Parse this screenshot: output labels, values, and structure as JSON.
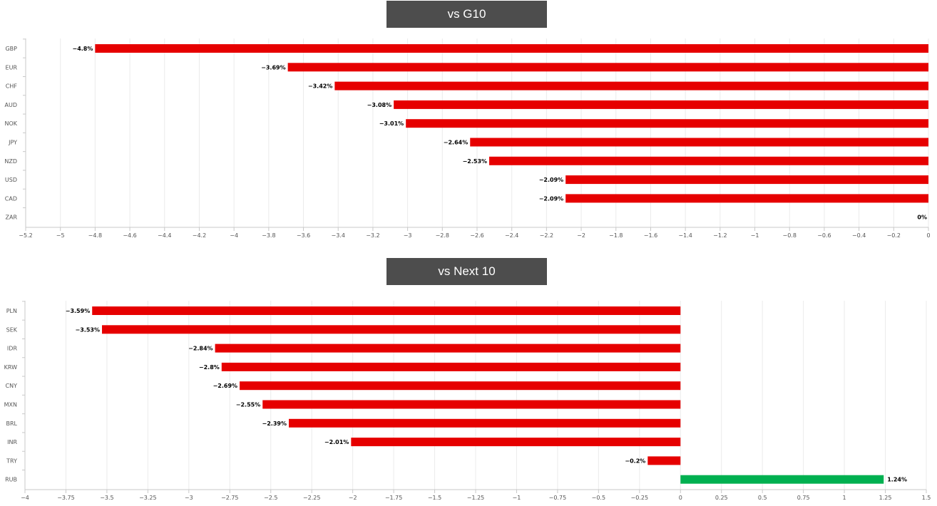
{
  "chart_data": [
    {
      "type": "bar",
      "orientation": "horizontal",
      "title": "vs G10",
      "categories": [
        "GBP",
        "EUR",
        "CHF",
        "AUD",
        "NOK",
        "JPY",
        "NZD",
        "USD",
        "CAD",
        "ZAR"
      ],
      "values": [
        -4.8,
        -3.69,
        -3.42,
        -3.08,
        -3.01,
        -2.64,
        -2.53,
        -2.09,
        -2.09,
        0
      ],
      "data_labels": [
        "−4.8%",
        "−3.69%",
        "−3.42%",
        "−3.08%",
        "−3.01%",
        "−2.64%",
        "−2.53%",
        "−2.09%",
        "−2.09%",
        "0%"
      ],
      "xlim": [
        -5.2,
        0
      ],
      "xticks": [
        -5.2,
        -5,
        -4.8,
        -4.6,
        -4.4,
        -4.2,
        -4,
        -3.8,
        -3.6,
        -3.4,
        -3.2,
        -3,
        -2.8,
        -2.6,
        -2.4,
        -2.2,
        -2,
        -1.8,
        -1.6,
        -1.4,
        -1.2,
        -1,
        -0.8,
        -0.6,
        -0.4,
        -0.2,
        0
      ],
      "xtick_labels": [
        "−5.2",
        "−5",
        "−4.8",
        "−4.6",
        "−4.4",
        "−4.2",
        "−4",
        "−3.8",
        "−3.6",
        "−3.4",
        "−3.2",
        "−3",
        "−2.8",
        "−2.6",
        "−2.4",
        "−2.2",
        "−2",
        "−1.8",
        "−1.6",
        "−1.4",
        "−1.2",
        "−1",
        "−0.8",
        "−0.6",
        "−0.4",
        "−0.2",
        "0"
      ],
      "grid": true,
      "colors": {
        "negative": "#e60000",
        "positive": "#00b050"
      }
    },
    {
      "type": "bar",
      "orientation": "horizontal",
      "title": "vs Next 10",
      "categories": [
        "PLN",
        "SEK",
        "IDR",
        "KRW",
        "CNY",
        "MXN",
        "BRL",
        "INR",
        "TRY",
        "RUB"
      ],
      "values": [
        -3.59,
        -3.53,
        -2.84,
        -2.8,
        -2.69,
        -2.55,
        -2.39,
        -2.01,
        -0.2,
        1.24
      ],
      "data_labels": [
        "−3.59%",
        "−3.53%",
        "−2.84%",
        "−2.8%",
        "−2.69%",
        "−2.55%",
        "−2.39%",
        "−2.01%",
        "−0.2%",
        "1.24%"
      ],
      "xlim": [
        -4,
        1.5
      ],
      "xticks": [
        -4,
        -3.75,
        -3.5,
        -3.25,
        -3,
        -2.75,
        -2.5,
        -2.25,
        -2,
        -1.75,
        -1.5,
        -1.25,
        -1,
        -0.75,
        -0.5,
        -0.25,
        0,
        0.25,
        0.5,
        0.75,
        1,
        1.25,
        1.5
      ],
      "xtick_labels": [
        "−4",
        "−3.75",
        "−3.5",
        "−3.25",
        "−3",
        "−2.75",
        "−2.5",
        "−2.25",
        "−2",
        "−1.75",
        "−1.5",
        "−1.25",
        "−1",
        "−0.75",
        "−0.5",
        "−0.25",
        "0",
        "0.25",
        "0.5",
        "0.75",
        "1",
        "1.25",
        "1.5"
      ],
      "grid": true,
      "colors": {
        "negative": "#e60000",
        "positive": "#00b050"
      }
    }
  ]
}
